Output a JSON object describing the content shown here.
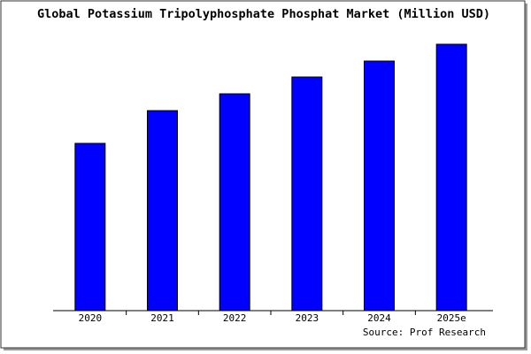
{
  "chart_data": {
    "type": "bar",
    "title": "Global Potassium Tripolyphosphate Phosphat Market (Million USD)",
    "categories": [
      "2020",
      "2021",
      "2022",
      "2023",
      "2024",
      "2025e"
    ],
    "values": [
      189,
      226,
      245,
      264,
      282,
      301
    ],
    "color": "#0000ff",
    "ylim": [
      0,
      303
    ],
    "source": "Source: Prof Research"
  }
}
